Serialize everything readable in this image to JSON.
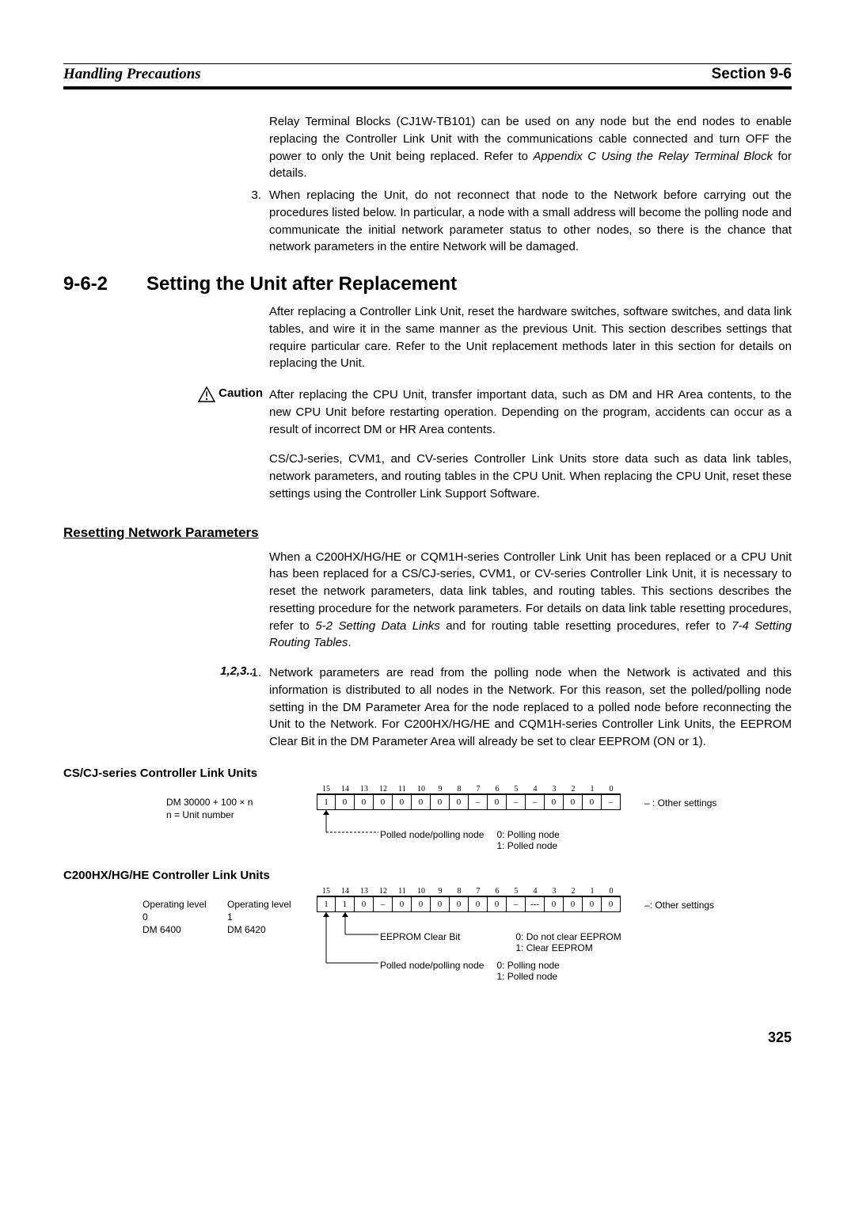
{
  "header": {
    "left": "Handling Precautions",
    "right": "Section 9-6"
  },
  "intro": {
    "para1_a": "Relay Terminal Blocks (CJ1W-TB101) can be used on any node but the end nodes to enable replacing the Controller Link Unit with the communications cable connected and turn OFF the power to only the Unit being replaced. Refer to ",
    "para1_b": "Appendix C Using the Relay Terminal Block",
    "para1_c": " for details.",
    "num3": "3.",
    "para2": "When replacing the Unit, do not reconnect that node to the Network before carrying out the procedures listed below. In particular, a node with a small address will become the polling node and communicate the initial network parameter status to other nodes, so there is the chance that network parameters in the entire Network will be damaged."
  },
  "h2": {
    "num": "9-6-2",
    "title": "Setting the Unit after Replacement"
  },
  "sect": {
    "p1": "After replacing a Controller Link Unit, reset the hardware switches, software switches, and data link tables, and wire it in the same manner as the previous Unit. This section describes settings that require particular care. Refer to the Unit replacement methods later in this section for details on replacing the Unit."
  },
  "caution": {
    "label": "Caution",
    "body": "After replacing the CPU Unit, transfer important data, such as DM and HR Area contents, to the new CPU Unit before restarting operation. Depending on the program, accidents can occur as a result of incorrect DM or HR Area contents.",
    "body2": "CS/CJ-series, CVM1, and CV-series Controller Link Units store data such as data link tables, network parameters, and routing tables in the CPU Unit. When replacing the CPU Unit, reset these settings using the Controller Link Support Software."
  },
  "h3_reset": "Resetting Network Parameters",
  "reset": {
    "p1_a": "When a C200HX/HG/HE or CQM1H-series Controller Link Unit has been replaced or a CPU Unit has been replaced for a CS/CJ-series, CVM1, or CV-series Controller Link Unit, it is necessary to reset the network parameters, data link tables, and routing tables. This sections describes the resetting procedure for the network parameters. For details on data link table resetting procedures, refer to ",
    "p1_b": "5-2 Setting Data Links",
    "p1_c": " and for routing table resetting procedures, refer to ",
    "p1_d": "7-4 Setting Routing Tables",
    "p1_e": "."
  },
  "steps": {
    "label": "1,2,3...",
    "n1": "1.",
    "s1": "Network parameters are read from the polling node when the Network is activated and this information is distributed to all nodes in the Network. For this reason, set the polled/polling node setting in the DM Parameter Area for the node replaced to a polled node before reconnecting the Unit to the Network. For C200HX/HG/HE and CQM1H-series Controller Link Units, the EEPROM Clear Bit in the DM Parameter Area will already be set to clear EEPROM (ON or 1)."
  },
  "sub_cs": "CS/CJ-series Controller Link Units",
  "sub_c200": "C200HX/HG/HE Controller Link Units",
  "diag1": {
    "left_l1": "DM 30000 + 100 × n",
    "left_l2": "n = Unit number",
    "bit_labels": [
      "15",
      "14",
      "13",
      "12",
      "11",
      "10",
      "9",
      "8",
      "7",
      "6",
      "5",
      "4",
      "3",
      "2",
      "1",
      "0"
    ],
    "bits": [
      "1",
      "0",
      "0",
      "0",
      "0",
      "0",
      "0",
      "0",
      "–",
      "0",
      "–",
      "–",
      "0",
      "0",
      "0",
      "–"
    ],
    "right_note": "– : Other settings",
    "callout_label": "Polled node/polling node",
    "callout_k0": "0: Polling node",
    "callout_k1": "1: Polled node"
  },
  "diag2": {
    "left_a1": "Operating level 0",
    "left_a2": "DM 6400",
    "left_b1": "Operating level 1",
    "left_b2": "DM 6420",
    "bit_labels": [
      "15",
      "14",
      "13",
      "12",
      "11",
      "10",
      "9",
      "8",
      "7",
      "6",
      "5",
      "4",
      "3",
      "2",
      "1",
      "0"
    ],
    "bits": [
      "1",
      "1",
      "0",
      "–",
      "0",
      "0",
      "0",
      "0",
      "0",
      "0",
      "–",
      "---",
      "0",
      "0",
      "0",
      "0"
    ],
    "right_note": "–: Other settings",
    "c1_label": "EEPROM Clear Bit",
    "c1_k0": "0: Do not clear EEPROM",
    "c1_k1": "1: Clear EEPROM",
    "c2_label": "Polled node/polling node",
    "c2_k0": "0: Polling node",
    "c2_k1": "1: Polled node"
  },
  "pagenum": "325",
  "colors": {
    "text": "#000000",
    "bg": "#ffffff",
    "rule": "#000000",
    "cell_border": "#000000"
  }
}
